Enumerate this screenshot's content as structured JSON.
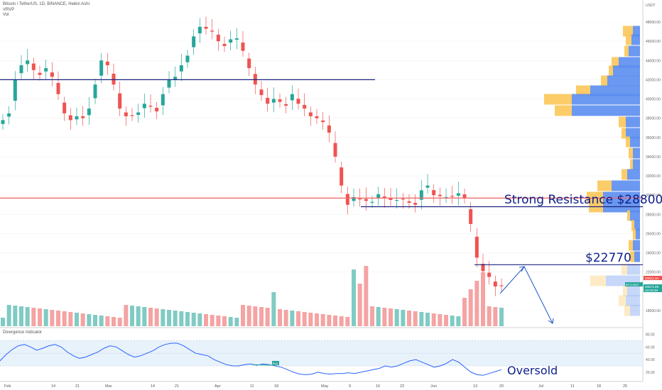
{
  "legend": {
    "symbol_line": "Bitcoin / TetherUS, 1D, BINANCE, Heikin Ashi",
    "indicator_1": "VRVP",
    "indicator_2": "Vol"
  },
  "indicator_panel": {
    "title": "Divergence Indicator"
  },
  "price_axis": {
    "currency": "USDT",
    "ticks": [
      "48000.00",
      "46000.00",
      "44000.00",
      "42000.00",
      "40000.00",
      "38000.00",
      "36000.00",
      "34000.00",
      "32000.00",
      "30000.00",
      "28000.00",
      "26000.00",
      "24000.00",
      "22000.00",
      "18000.00"
    ],
    "tick_values": [
      48000,
      46000,
      44000,
      42000,
      40000,
      38000,
      36000,
      34000,
      32000,
      30000,
      28000,
      26000,
      24000,
      22000,
      18000
    ],
    "badges": [
      {
        "text": "20611.10",
        "color": "#ef5350"
      },
      {
        "text": "BTCUSDT",
        "color": "#26a69a"
      },
      {
        "text": "20571.88",
        "color": "#26a69a"
      },
      {
        "text": "23:03:38",
        "color": "#26a69a"
      }
    ]
  },
  "indicator_axis": {
    "ticks": [
      "80.00",
      "60.00",
      "40.00",
      "20.00"
    ],
    "tick_values": [
      80,
      60,
      40,
      20
    ]
  },
  "time_axis": {
    "labels": [
      "Feb",
      "14",
      "21",
      "Mar",
      "14",
      "21",
      "Apr",
      "11",
      "18",
      "May",
      "9",
      "16",
      "23",
      "Jun",
      "13",
      "20",
      "Jul",
      "11",
      "18",
      "25"
    ]
  },
  "annotations": {
    "resistance": "Strong Resistance $28800",
    "level": "$22770",
    "oversold": "Oversold",
    "bull_tag": "Bull"
  },
  "levels": {
    "resistance_price": 28800,
    "target_price": 22770,
    "blue_line_price": 42000,
    "red_line_price": 29700
  },
  "colors": {
    "up": "#26a69a",
    "down": "#ef5350",
    "up_vol": "#80cbc4",
    "down_vol": "#f5a3a3",
    "navy": "#1a237e",
    "indicator_line": "#2962ff",
    "vrvp_up": "#fbc658",
    "vrvp_down": "#5b8def"
  },
  "chart_data": {
    "type": "candlestick",
    "price_close_series": [
      37800,
      38500,
      42000,
      43500,
      44000,
      43000,
      42500,
      43200,
      42300,
      40500,
      38500,
      37800,
      38200,
      38000,
      39000,
      41500,
      44000,
      43500,
      41500,
      39000,
      38200,
      38300,
      38600,
      39500,
      39200,
      38700,
      40500,
      42000,
      42300,
      43500,
      44500,
      46500,
      47500,
      47300,
      47000,
      46000,
      45500,
      46200,
      46300,
      45000,
      43200,
      41500,
      40400,
      39500,
      40000,
      39700,
      39300,
      40500,
      39500,
      39000,
      38200,
      38000,
      37600,
      36500,
      34000,
      31000,
      29000,
      29800,
      29600,
      29400,
      29300,
      30100,
      29700,
      29500,
      29500,
      29600,
      29200,
      29000,
      30500,
      31000,
      30000,
      29900,
      29800,
      29900,
      30200,
      29700,
      27000,
      23500,
      22100,
      21500,
      20500,
      20600
    ],
    "volume_profile_note": "VRVP horizontal histogram on right"
  }
}
